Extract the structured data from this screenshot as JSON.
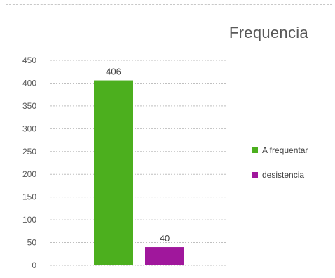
{
  "chart_data": {
    "type": "bar",
    "title": "Frequencia",
    "categories": [
      "A frequentar",
      "desistencia"
    ],
    "series": [
      {
        "name": "A frequentar",
        "values": [
          406,
          null
        ],
        "color": "#4caf1e"
      },
      {
        "name": "desistencia",
        "values": [
          null,
          40
        ],
        "color": "#a0179c"
      }
    ],
    "values": [
      406,
      40
    ],
    "data_labels": [
      "406",
      "40"
    ],
    "ylim": [
      0,
      450
    ],
    "yticks": [
      0,
      50,
      100,
      150,
      200,
      250,
      300,
      350,
      400,
      450
    ],
    "ytick_labels": [
      "0",
      "50",
      "100",
      "150",
      "200",
      "250",
      "300",
      "350",
      "400",
      "450"
    ],
    "grid": true,
    "legend_position": "right"
  },
  "legend": [
    {
      "label": "A frequentar",
      "color": "#4caf1e"
    },
    {
      "label": "desistencia",
      "color": "#a0179c"
    }
  ]
}
